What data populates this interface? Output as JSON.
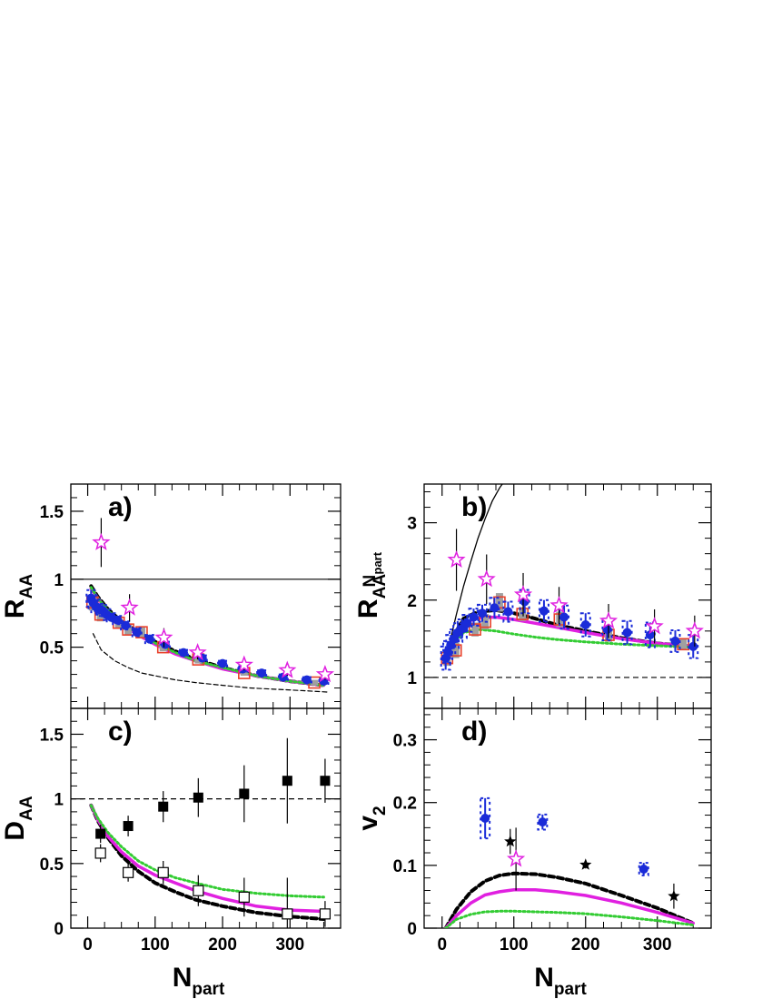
{
  "chart_data": [
    {
      "panel": "a)",
      "type": "scatter",
      "ylabel": {
        "main": "R",
        "sub": "AA",
        "sup": ""
      },
      "xlabel": {
        "main": "",
        "sub": ""
      },
      "xlim": [
        -25,
        375
      ],
      "ylim": [
        0.05,
        1.7
      ],
      "xticks": [
        0,
        100,
        200,
        300
      ],
      "show_xtick_labels": false,
      "yticks": [
        0.5,
        1,
        1.5
      ],
      "ytick_labels": [
        "0.5",
        "1",
        "1.5"
      ],
      "yminor": [
        0.1,
        0.2,
        0.3,
        0.4,
        0.6,
        0.7,
        0.8,
        0.9,
        1.1,
        1.2,
        1.3,
        1.4,
        1.6,
        1.7
      ],
      "series": [
        {
          "style": "open-square-red",
          "color": "#e8402a",
          "x": [
            7,
            19,
            46,
            60,
            80,
            112,
            164,
            232,
            336
          ],
          "y": [
            0.83,
            0.74,
            0.68,
            0.63,
            0.61,
            0.5,
            0.41,
            0.31,
            0.24
          ],
          "err": [
            0.06,
            0.05,
            0.04,
            0.04,
            0.04,
            0.03,
            0.03,
            0.02,
            0.02
          ]
        },
        {
          "style": "circle-blue",
          "color": "#1a2bd8",
          "x": [
            5,
            8,
            12,
            17,
            22,
            28,
            35,
            44,
            56,
            73,
            92,
            115,
            142,
            170,
            200,
            230,
            258,
            290,
            325,
            350
          ],
          "y": [
            0.86,
            0.83,
            0.8,
            0.78,
            0.77,
            0.74,
            0.72,
            0.7,
            0.66,
            0.61,
            0.56,
            0.52,
            0.46,
            0.42,
            0.38,
            0.34,
            0.31,
            0.28,
            0.26,
            0.25
          ],
          "err": [
            0.06,
            0.05,
            0.05,
            0.04,
            0.04,
            0.04,
            0.03,
            0.03,
            0.03,
            0.03,
            0.03,
            0.02,
            0.02,
            0.02,
            0.02,
            0.02,
            0.02,
            0.02,
            0.02,
            0.02
          ]
        },
        {
          "style": "open-star-magenta",
          "color": "#e020e0",
          "x": [
            20,
            62,
            113,
            163,
            232,
            296,
            352
          ],
          "y": [
            1.27,
            0.79,
            0.57,
            0.46,
            0.37,
            0.33,
            0.3
          ],
          "err": [
            0.18,
            0.1,
            0.07,
            0.05,
            0.04,
            0.04,
            0.04
          ]
        }
      ],
      "hlines": [
        {
          "y": 1.0,
          "style": "solid"
        }
      ],
      "curves": [
        {
          "style": "thin-black-dashed",
          "x": [
            8,
            20,
            40,
            60,
            80,
            100,
            130,
            160,
            200,
            240,
            280,
            320,
            355
          ],
          "y": [
            0.6,
            0.48,
            0.4,
            0.35,
            0.31,
            0.29,
            0.26,
            0.24,
            0.22,
            0.2,
            0.19,
            0.18,
            0.17
          ]
        },
        {
          "style": "black-dotted-thick",
          "x": [
            5,
            15,
            30,
            50,
            75,
            100,
            130,
            160,
            200,
            250,
            300,
            350
          ],
          "y": [
            0.95,
            0.87,
            0.78,
            0.69,
            0.61,
            0.54,
            0.47,
            0.41,
            0.35,
            0.29,
            0.25,
            0.22
          ]
        },
        {
          "style": "magenta-solid",
          "x": [
            5,
            15,
            30,
            50,
            75,
            100,
            130,
            160,
            200,
            250,
            300,
            350
          ],
          "y": [
            0.93,
            0.86,
            0.76,
            0.67,
            0.59,
            0.52,
            0.45,
            0.4,
            0.34,
            0.29,
            0.25,
            0.22
          ]
        },
        {
          "style": "green-dotted",
          "x": [
            5,
            15,
            30,
            50,
            75,
            100,
            130,
            160,
            200,
            250,
            300,
            350
          ],
          "y": [
            0.94,
            0.86,
            0.77,
            0.68,
            0.6,
            0.53,
            0.46,
            0.4,
            0.35,
            0.29,
            0.25,
            0.22
          ]
        }
      ]
    },
    {
      "panel": "b)",
      "type": "scatter",
      "ylabel": {
        "main": "R",
        "sub": "AA",
        "sup": "N"
      },
      "ylabel_sup_sub": "part",
      "xlabel": {
        "main": "",
        "sub": ""
      },
      "xlim": [
        -25,
        375
      ],
      "ylim": [
        0.6,
        3.5
      ],
      "xticks": [
        0,
        100,
        200,
        300
      ],
      "show_xtick_labels": false,
      "yticks": [
        1,
        2,
        3
      ],
      "ytick_labels": [
        "1",
        "2",
        "3"
      ],
      "yminor": [
        0.8,
        1.2,
        1.4,
        1.6,
        1.8,
        2.2,
        2.4,
        2.6,
        2.8,
        3.2,
        3.4
      ],
      "series": [
        {
          "style": "open-square-red",
          "color": "#e8402a",
          "x": [
            7,
            19,
            46,
            60,
            80,
            112,
            164,
            232,
            336
          ],
          "y": [
            1.25,
            1.35,
            1.62,
            1.72,
            1.97,
            1.82,
            1.75,
            1.55,
            1.43
          ],
          "err": [
            0.1,
            0.1,
            0.09,
            0.1,
            0.12,
            0.09,
            0.1,
            0.09,
            0.07
          ]
        },
        {
          "style": "circle-blue",
          "color": "#1a2bd8",
          "x": [
            5,
            8,
            12,
            17,
            22,
            28,
            35,
            44,
            56,
            73,
            92,
            115,
            142,
            170,
            200,
            230,
            258,
            290,
            325,
            350
          ],
          "y": [
            1.25,
            1.33,
            1.42,
            1.5,
            1.58,
            1.63,
            1.7,
            1.78,
            1.83,
            1.9,
            1.85,
            1.98,
            1.86,
            1.78,
            1.68,
            1.62,
            1.58,
            1.55,
            1.47,
            1.4
          ],
          "err": [
            0.15,
            0.14,
            0.13,
            0.12,
            0.12,
            0.12,
            0.11,
            0.11,
            0.11,
            0.13,
            0.13,
            0.15,
            0.14,
            0.15,
            0.15,
            0.14,
            0.15,
            0.16,
            0.14,
            0.15
          ]
        },
        {
          "style": "open-star-magenta",
          "color": "#e020e0",
          "x": [
            20,
            62,
            113,
            163,
            232,
            296,
            352
          ],
          "y": [
            2.52,
            2.27,
            2.07,
            1.93,
            1.73,
            1.66,
            1.6
          ],
          "err": [
            0.4,
            0.32,
            0.28,
            0.24,
            0.22,
            0.22,
            0.2
          ]
        }
      ],
      "hlines": [
        {
          "y": 1.0,
          "style": "dashed"
        }
      ],
      "curves": [
        {
          "style": "thin-black-solid",
          "x": [
            5,
            10,
            15,
            20,
            30,
            40,
            50,
            60,
            70,
            80,
            90
          ],
          "y": [
            1.15,
            1.4,
            1.62,
            1.82,
            2.18,
            2.5,
            2.8,
            3.05,
            3.28,
            3.45,
            3.58
          ]
        },
        {
          "style": "black-dotted-thick",
          "x": [
            5,
            15,
            30,
            50,
            75,
            100,
            130,
            160,
            200,
            250,
            300,
            350
          ],
          "y": [
            1.2,
            1.52,
            1.76,
            1.85,
            1.87,
            1.83,
            1.76,
            1.68,
            1.6,
            1.51,
            1.44,
            1.4
          ]
        },
        {
          "style": "magenta-solid",
          "x": [
            5,
            15,
            30,
            50,
            75,
            100,
            130,
            160,
            200,
            250,
            300,
            350
          ],
          "y": [
            1.18,
            1.48,
            1.7,
            1.77,
            1.78,
            1.75,
            1.7,
            1.65,
            1.58,
            1.5,
            1.44,
            1.4
          ]
        },
        {
          "style": "green-dotted",
          "x": [
            5,
            15,
            30,
            50,
            75,
            100,
            130,
            160,
            200,
            250,
            300,
            350
          ],
          "y": [
            1.16,
            1.44,
            1.58,
            1.62,
            1.6,
            1.56,
            1.52,
            1.49,
            1.46,
            1.43,
            1.41,
            1.39
          ]
        }
      ]
    },
    {
      "panel": "c)",
      "type": "scatter",
      "ylabel": {
        "main": "D",
        "sub": "AA",
        "sup": ""
      },
      "xlabel": {
        "main": "N",
        "sub": "part"
      },
      "xlim": [
        -25,
        375
      ],
      "ylim": [
        0,
        1.7
      ],
      "xticks": [
        0,
        100,
        200,
        300
      ],
      "show_xtick_labels": true,
      "xtick_labels": [
        "0",
        "100",
        "200",
        "300"
      ],
      "yticks": [
        0,
        0.5,
        1,
        1.5
      ],
      "ytick_labels": [
        "0",
        "0.5",
        "1",
        "1.5"
      ],
      "yminor": [
        0.1,
        0.2,
        0.3,
        0.4,
        0.6,
        0.7,
        0.8,
        0.9,
        1.1,
        1.2,
        1.3,
        1.4,
        1.6
      ],
      "series": [
        {
          "style": "filled-square-black",
          "color": "#000000",
          "x": [
            19,
            60,
            112,
            164,
            232,
            296,
            352
          ],
          "y": [
            0.73,
            0.79,
            0.94,
            1.01,
            1.04,
            1.14,
            1.14
          ],
          "err": [
            0.07,
            0.08,
            0.12,
            0.15,
            0.22,
            0.33,
            0.17
          ]
        },
        {
          "style": "open-square-black",
          "color": "#000000",
          "x": [
            19,
            60,
            112,
            164,
            232,
            296,
            352
          ],
          "y": [
            0.58,
            0.43,
            0.43,
            0.29,
            0.24,
            0.11,
            0.11
          ],
          "err": [
            0.07,
            0.07,
            0.09,
            0.12,
            0.15,
            0.28,
            0.1
          ]
        }
      ],
      "hlines": [
        {
          "y": 1.0,
          "style": "dashed"
        }
      ],
      "curves": [
        {
          "style": "black-dotted-thick",
          "x": [
            5,
            15,
            30,
            50,
            75,
            100,
            130,
            160,
            200,
            250,
            300,
            350
          ],
          "y": [
            0.95,
            0.83,
            0.7,
            0.56,
            0.44,
            0.35,
            0.28,
            0.22,
            0.17,
            0.12,
            0.09,
            0.07
          ]
        },
        {
          "style": "magenta-solid",
          "x": [
            5,
            15,
            30,
            50,
            75,
            100,
            130,
            160,
            200,
            250,
            300,
            350
          ],
          "y": [
            0.95,
            0.84,
            0.71,
            0.59,
            0.48,
            0.41,
            0.35,
            0.29,
            0.23,
            0.17,
            0.14,
            0.13
          ]
        },
        {
          "style": "green-dotted",
          "x": [
            5,
            15,
            30,
            50,
            75,
            100,
            130,
            160,
            200,
            250,
            300,
            350
          ],
          "y": [
            0.95,
            0.85,
            0.74,
            0.63,
            0.52,
            0.45,
            0.39,
            0.35,
            0.3,
            0.27,
            0.25,
            0.24
          ]
        }
      ]
    },
    {
      "panel": "d)",
      "type": "scatter",
      "ylabel": {
        "main": "v",
        "sub": "2",
        "sup": ""
      },
      "xlabel": {
        "main": "N",
        "sub": "part"
      },
      "xlim": [
        -25,
        375
      ],
      "ylim": [
        0,
        0.35
      ],
      "xticks": [
        0,
        100,
        200,
        300
      ],
      "show_xtick_labels": true,
      "xtick_labels": [
        "0",
        "100",
        "200",
        "300"
      ],
      "yticks": [
        0,
        0.1,
        0.2,
        0.3
      ],
      "ytick_labels": [
        "0",
        "0.1",
        "0.2",
        "0.3"
      ],
      "yminor": [
        0.02,
        0.04,
        0.06,
        0.08,
        0.12,
        0.14,
        0.16,
        0.18,
        0.22,
        0.24,
        0.26,
        0.28,
        0.32,
        0.34
      ],
      "series": [
        {
          "style": "circle-blue",
          "color": "#1a2bd8",
          "x": [
            60,
            140,
            281
          ],
          "y": [
            0.175,
            0.169,
            0.094
          ],
          "err": [
            0.032,
            0.012,
            0.01
          ]
        },
        {
          "style": "filled-star-black",
          "color": "#000000",
          "x": [
            95,
            200,
            323
          ],
          "y": [
            0.138,
            0.101,
            0.051
          ],
          "err": [
            0.02,
            0.006,
            0.02
          ]
        },
        {
          "style": "open-star-magenta",
          "color": "#e020e0",
          "x": [
            103
          ],
          "y": [
            0.11
          ],
          "err": [
            0.05
          ]
        }
      ],
      "hlines": [],
      "curves": [
        {
          "style": "black-dotted-thick",
          "x": [
            5,
            20,
            40,
            60,
            80,
            100,
            130,
            160,
            200,
            250,
            300,
            350
          ],
          "y": [
            0.0,
            0.03,
            0.058,
            0.075,
            0.084,
            0.087,
            0.086,
            0.081,
            0.071,
            0.052,
            0.032,
            0.008
          ]
        },
        {
          "style": "magenta-solid",
          "x": [
            5,
            20,
            40,
            60,
            80,
            100,
            130,
            160,
            200,
            250,
            300,
            350
          ],
          "y": [
            0.0,
            0.02,
            0.04,
            0.053,
            0.058,
            0.061,
            0.061,
            0.058,
            0.052,
            0.04,
            0.025,
            0.008
          ]
        },
        {
          "style": "green-dotted",
          "x": [
            5,
            20,
            40,
            60,
            80,
            100,
            130,
            160,
            200,
            250,
            300,
            350
          ],
          "y": [
            0.0,
            0.014,
            0.022,
            0.026,
            0.027,
            0.027,
            0.026,
            0.025,
            0.023,
            0.018,
            0.012,
            0.005
          ]
        }
      ]
    }
  ],
  "colors": {
    "magenta": "#e020e0",
    "green": "#33cc33",
    "blue": "#1a2bd8",
    "red": "#e8402a",
    "gray_box": "#a0a0a0",
    "black": "#000000"
  }
}
